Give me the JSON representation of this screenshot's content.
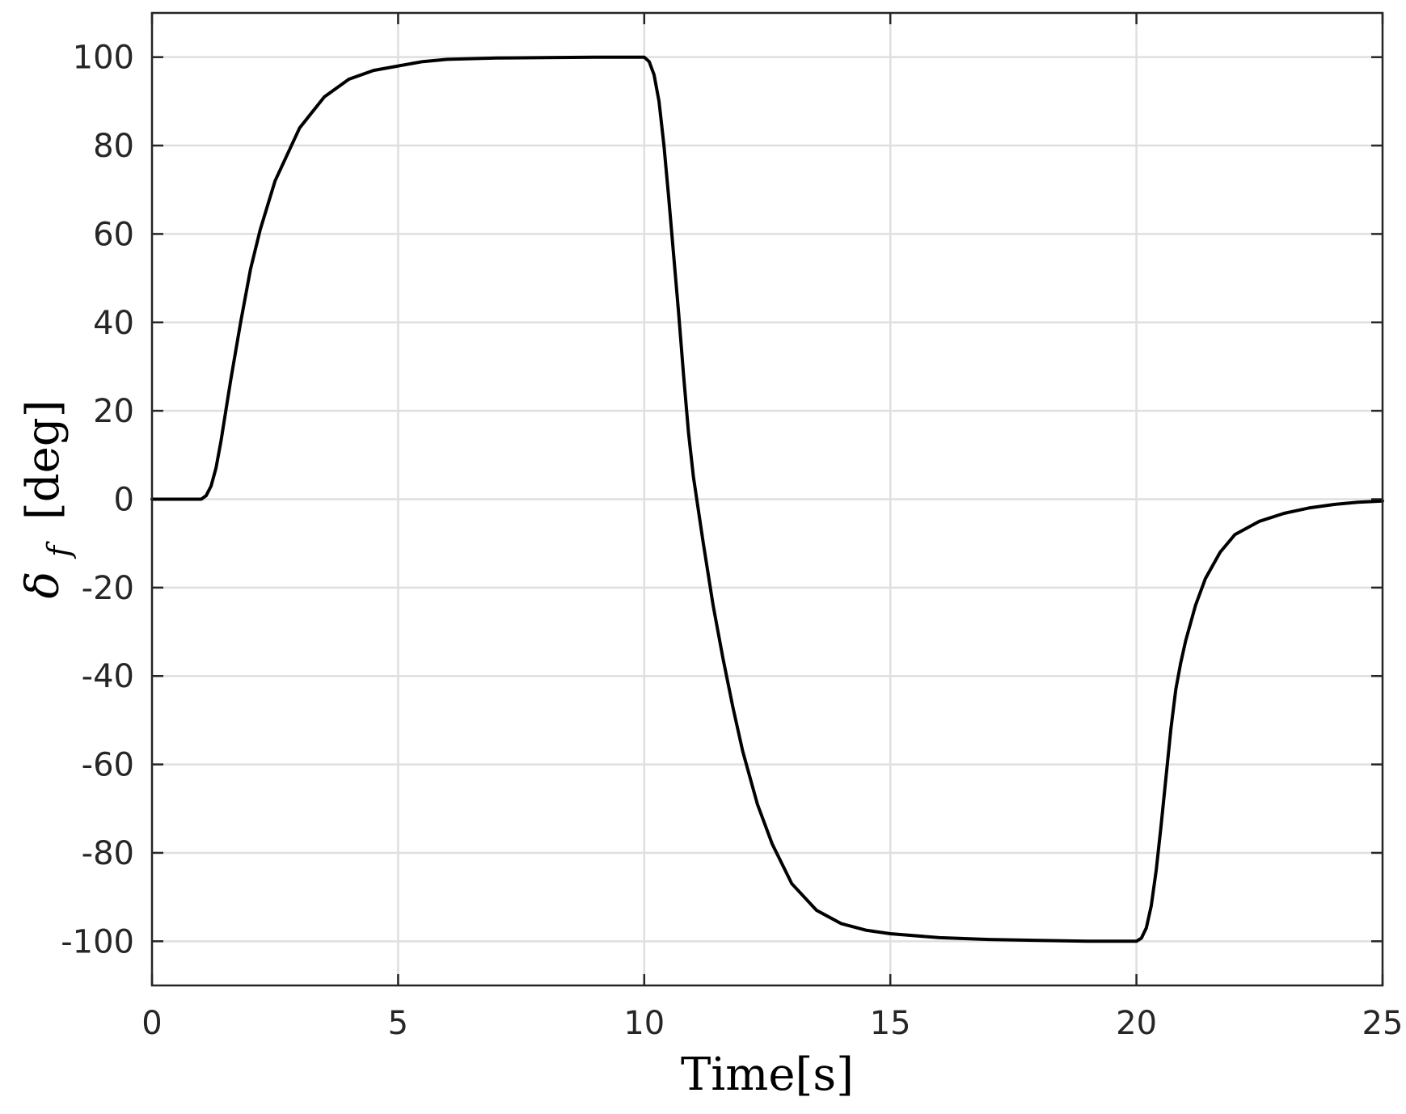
{
  "chart_data": {
    "type": "line",
    "xlabel": "Time[s]",
    "ylabel_symbol": "δ",
    "ylabel_subscript": "f",
    "ylabel_unit": "[deg]",
    "xlim": [
      0,
      25
    ],
    "ylim": [
      -110,
      110
    ],
    "xticks": [
      0,
      5,
      10,
      15,
      20,
      25
    ],
    "xtick_labels": [
      "0",
      "5",
      "10",
      "15",
      "20",
      "25"
    ],
    "yticks": [
      -100,
      -80,
      -60,
      -40,
      -20,
      0,
      20,
      40,
      60,
      80,
      100
    ],
    "ytick_labels": [
      "-100",
      "-80",
      "-60",
      "-40",
      "-20",
      "0",
      "20",
      "40",
      "60",
      "80",
      "100"
    ],
    "grid": true,
    "colors": {
      "line": "#000000",
      "grid": "#dfdfdf",
      "axis": "#262626"
    },
    "series": [
      {
        "x": [
          0,
          0.5,
          1.0,
          1.1,
          1.2,
          1.3,
          1.4,
          1.5,
          1.6,
          1.8,
          2.0,
          2.2,
          2.5,
          3.0,
          3.5,
          4.0,
          4.5,
          5.0,
          5.5,
          6.0,
          7.0,
          8.0,
          9.0,
          10.0,
          10.1,
          10.2,
          10.3,
          10.4,
          10.5,
          10.6,
          10.7,
          10.8,
          10.9,
          11.0,
          11.2,
          11.4,
          11.6,
          11.8,
          12.0,
          12.3,
          12.6,
          13.0,
          13.5,
          14.0,
          14.5,
          15.0,
          16.0,
          17.0,
          18.0,
          19.0,
          19.8,
          20.0,
          20.1,
          20.2,
          20.3,
          20.4,
          20.5,
          20.6,
          20.7,
          20.8,
          20.9,
          21.0,
          21.2,
          21.4,
          21.7,
          22.0,
          22.5,
          23.0,
          23.5,
          24.0,
          24.5,
          25.0
        ],
        "y": [
          0,
          0,
          0,
          0.8,
          3,
          7,
          13,
          20,
          27,
          40,
          52,
          61,
          72,
          84,
          91,
          95,
          97,
          98,
          99,
          99.5,
          99.8,
          99.9,
          100,
          100,
          99,
          96,
          90,
          80,
          68,
          55,
          42,
          28,
          15,
          5,
          -10,
          -24,
          -36,
          -47,
          -57,
          -69,
          -78,
          -87,
          -93,
          -96,
          -97.5,
          -98.3,
          -99.2,
          -99.6,
          -99.8,
          -100,
          -100,
          -100,
          -99.3,
          -97,
          -92,
          -84,
          -74,
          -63,
          -52,
          -43,
          -37,
          -32,
          -24,
          -18,
          -12,
          -8,
          -5,
          -3.2,
          -2,
          -1.2,
          -0.7,
          -0.4
        ]
      }
    ]
  }
}
